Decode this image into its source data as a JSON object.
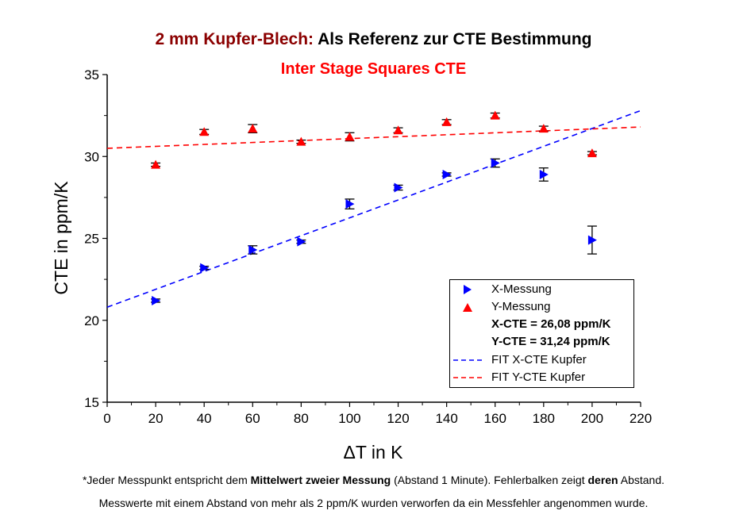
{
  "title": {
    "part1": "2 mm Kupfer-Blech:",
    "part2": " Als Referenz zur CTE Bestimmung",
    "line2": "Inter Stage Squares CTE",
    "part1_color": "#8b0000",
    "line2_color": "#ff0000"
  },
  "chart_data": {
    "type": "scatter",
    "xlabel": "ΔT in K",
    "ylabel": "CTE in ppm/K",
    "xlim": [
      0,
      220
    ],
    "ylim": [
      15,
      35
    ],
    "xticks": [
      0,
      20,
      40,
      60,
      80,
      100,
      120,
      140,
      160,
      180,
      200,
      220
    ],
    "yticks": [
      15,
      20,
      25,
      30,
      35
    ],
    "grid": false,
    "legend_position": "bottom-right",
    "series": [
      {
        "name": "X-Messung",
        "marker": "triangle-right",
        "color": "#0000ff",
        "x": [
          20,
          40,
          60,
          80,
          100,
          120,
          140,
          160,
          180,
          200
        ],
        "y": [
          21.2,
          23.2,
          24.3,
          24.8,
          27.1,
          28.1,
          28.9,
          29.6,
          28.9,
          24.9
        ],
        "err": [
          0.1,
          0.1,
          0.25,
          0.1,
          0.3,
          0.15,
          0.1,
          0.25,
          0.4,
          0.85
        ]
      },
      {
        "name": "Y-Messung",
        "marker": "triangle-up",
        "color": "#ff0000",
        "x": [
          20,
          40,
          60,
          80,
          100,
          120,
          140,
          160,
          180,
          200
        ],
        "y": [
          29.5,
          31.5,
          31.7,
          30.9,
          31.2,
          31.6,
          32.1,
          32.5,
          31.7,
          30.2
        ],
        "err": [
          0.1,
          0.15,
          0.25,
          0.1,
          0.25,
          0.15,
          0.15,
          0.15,
          0.15,
          0.1
        ]
      }
    ],
    "fits": [
      {
        "name": "FIT X-CTE Kupfer",
        "color": "#0000ff",
        "x": [
          0,
          220
        ],
        "y": [
          20.8,
          32.8
        ]
      },
      {
        "name": "FIT Y-CTE Kupfer",
        "color": "#ff0000",
        "x": [
          0,
          220
        ],
        "y": [
          30.5,
          31.8
        ]
      }
    ],
    "annotations": [
      "X-CTE = 26,08 ppm/K",
      "Y-CTE = 31,24 ppm/K"
    ]
  },
  "footnote": {
    "line1_a": "*Jeder Messpunkt entspricht dem ",
    "line1_b": "Mittelwert zweier Messung",
    "line1_c": " (Abstand 1 Minute). Fehlerbalken zeigt ",
    "line1_d": "deren",
    "line1_e": " Abstand.",
    "line2": "Messwerte mit einem Abstand von mehr als 2 ppm/K wurden verworfen da ein Messfehler angenommen wurde."
  }
}
